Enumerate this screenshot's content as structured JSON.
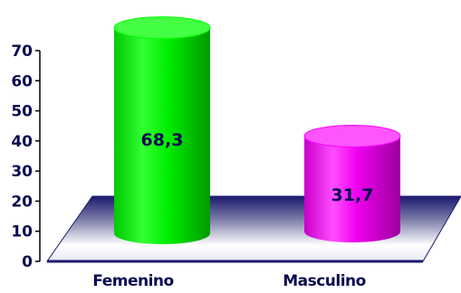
{
  "chart_data": {
    "type": "bar",
    "style": "3d-cylinder",
    "categories": [
      "Femenino",
      "Masculino"
    ],
    "series": [
      {
        "values": [
          68.3,
          31.7
        ],
        "labels": [
          "68,3",
          "31,7"
        ],
        "colors": [
          "#00ff00",
          "#ff00ff"
        ]
      }
    ],
    "ylim": [
      0,
      70
    ],
    "yticks": [
      0,
      10,
      20,
      30,
      40,
      50,
      60,
      70
    ],
    "title": "",
    "xlabel": "",
    "ylabel": "",
    "grid": false,
    "legend": "none",
    "floor_color": "#1a1a6e"
  }
}
